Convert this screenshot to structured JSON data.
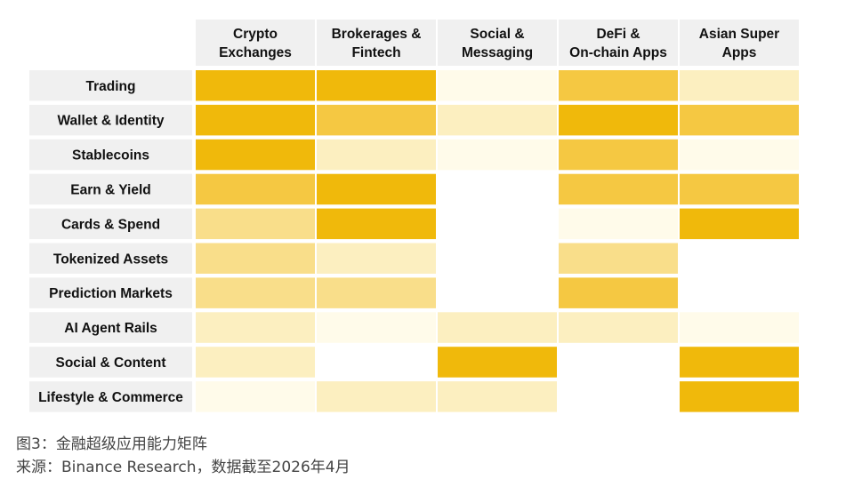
{
  "chart_data": {
    "type": "heatmap",
    "columns": [
      [
        "Crypto",
        "Exchanges"
      ],
      [
        "Brokerages &",
        "Fintech"
      ],
      [
        "Social &",
        "Messaging"
      ],
      [
        "DeFi &",
        "On-chain Apps"
      ],
      [
        "Asian Super",
        "Apps"
      ]
    ],
    "rows": [
      "Trading",
      "Wallet & Identity",
      "Stablecoins",
      "Earn & Yield",
      "Cards & Spend",
      "Tokenized Assets",
      "Prediction Markets",
      "AI Agent Rails",
      "Social & Content",
      "Lifestyle & Commerce"
    ],
    "values": [
      [
        5,
        5,
        1,
        4,
        2
      ],
      [
        5,
        4,
        2,
        5,
        4
      ],
      [
        5,
        2,
        1,
        4,
        1
      ],
      [
        4,
        5,
        0,
        4,
        4
      ],
      [
        3,
        5,
        0,
        1,
        5
      ],
      [
        3,
        2,
        0,
        3,
        0
      ],
      [
        3,
        3,
        0,
        4,
        0
      ],
      [
        2,
        1,
        2,
        2,
        1
      ],
      [
        2,
        0,
        5,
        0,
        5
      ],
      [
        1,
        2,
        2,
        0,
        5
      ]
    ],
    "scale_colors": [
      "#ffffff",
      "#fffbea",
      "#fcefc0",
      "#f9de8a",
      "#f5c842",
      "#f0b90b"
    ],
    "header_bg": "#f0f0f0"
  },
  "caption": {
    "figure": "图3：金融超级应用能力矩阵",
    "source": "来源：Binance Research，数据截至2026年4月"
  }
}
